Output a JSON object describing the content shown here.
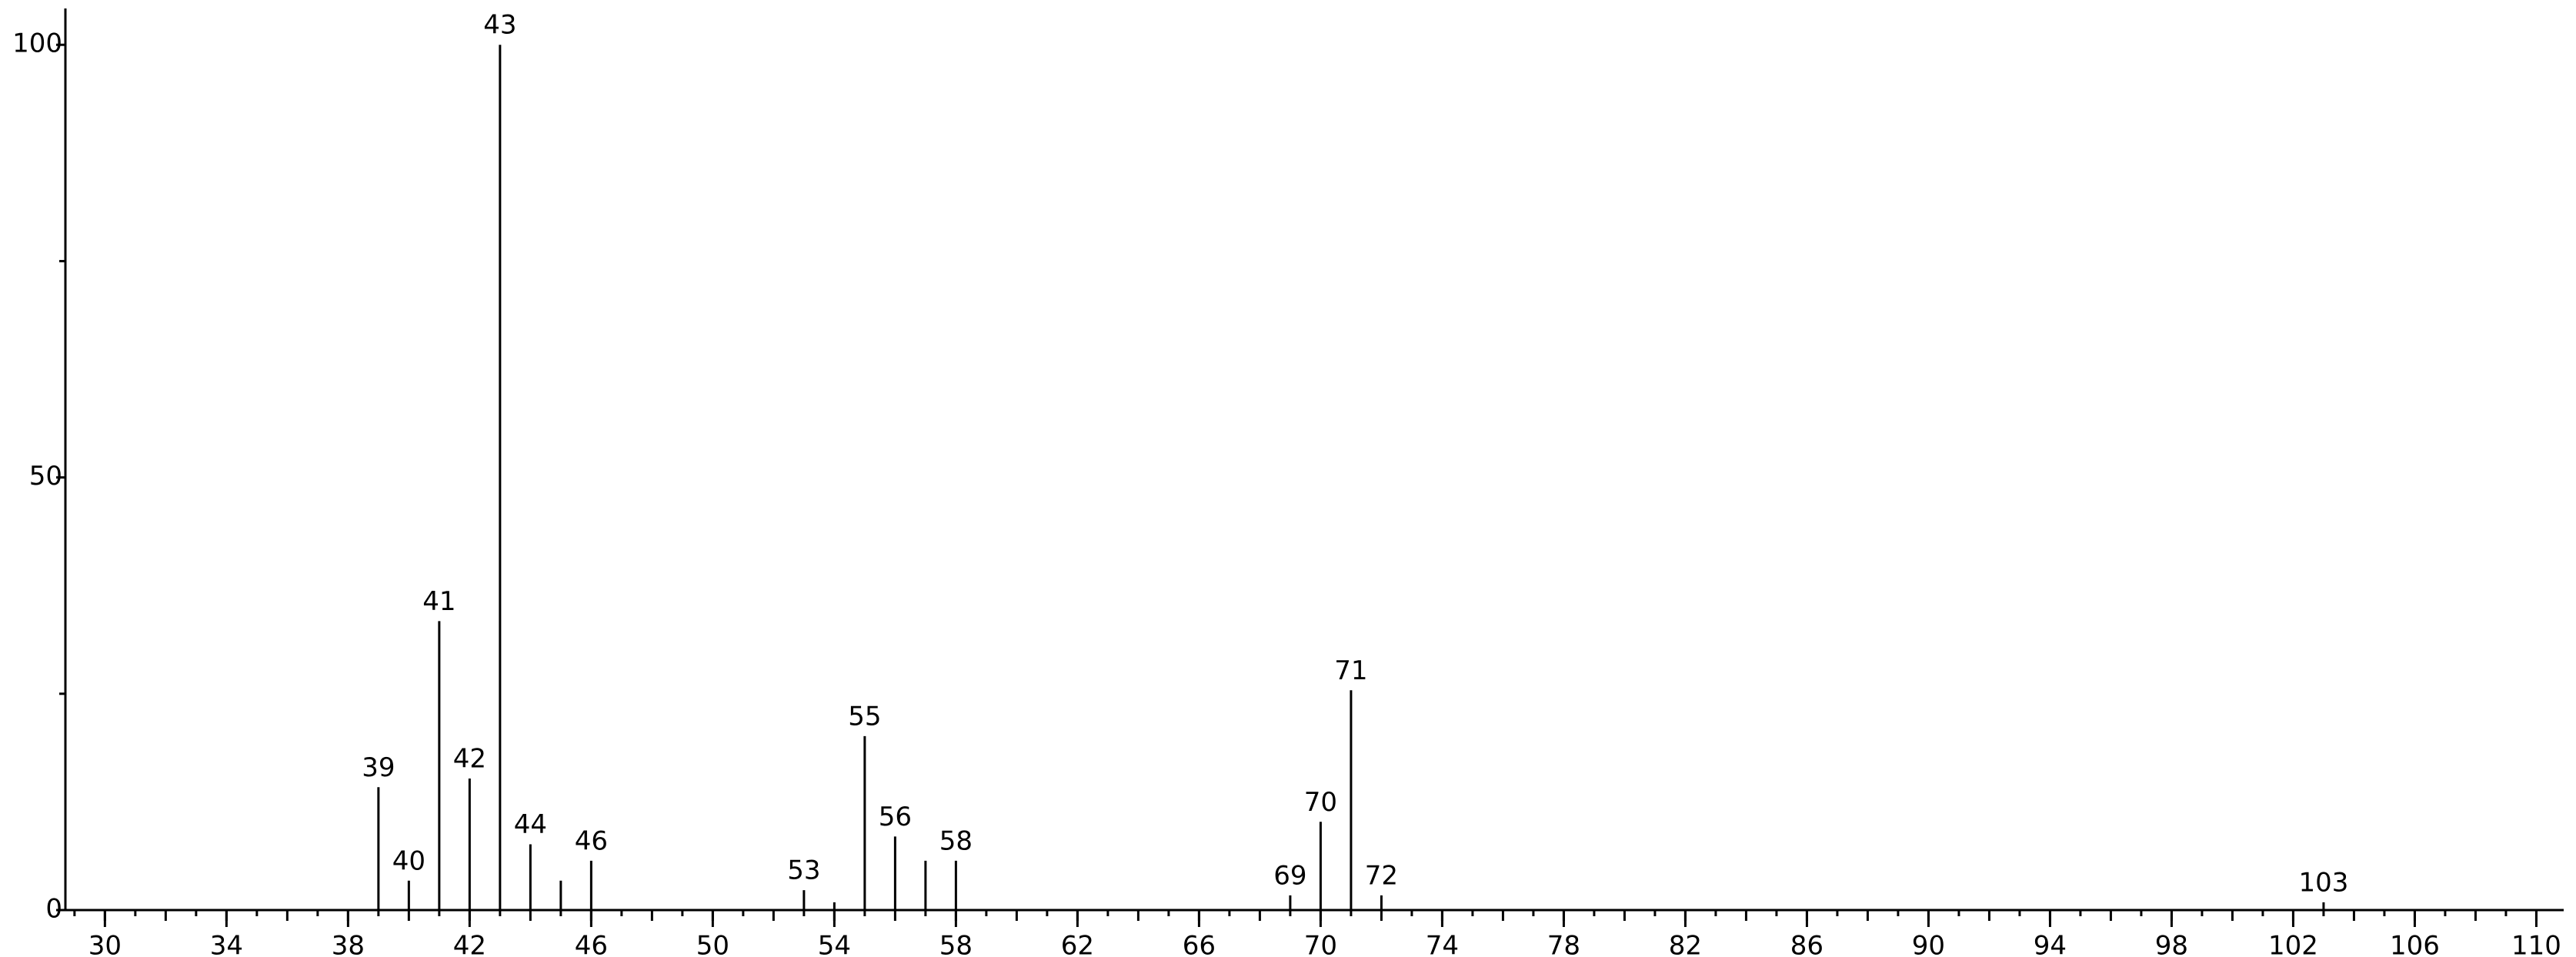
{
  "chart_data": {
    "type": "stem",
    "x": [
      39,
      40,
      41,
      42,
      43,
      44,
      45,
      46,
      53,
      54,
      55,
      56,
      57,
      58,
      69,
      70,
      71,
      72,
      103
    ],
    "values": [
      14.2,
      3.4,
      33.4,
      15.2,
      100,
      7.6,
      3.4,
      5.7,
      2.3,
      0.9,
      20.1,
      8.5,
      5.7,
      5.7,
      1.7,
      10.2,
      25.4,
      1.7,
      0.9
    ],
    "peak_labels": [
      "39",
      "40",
      "41",
      "42",
      "43",
      "44",
      null,
      "46",
      "53",
      null,
      "55",
      "56",
      null,
      "58",
      "69",
      "70",
      "71",
      "72",
      "103"
    ],
    "color": "#000000",
    "xlim": [
      28.7,
      110.9
    ],
    "ylim": [
      0,
      104.2
    ],
    "xticks": [
      30,
      34,
      38,
      42,
      46,
      50,
      54,
      58,
      62,
      66,
      70,
      74,
      78,
      82,
      86,
      90,
      94,
      98,
      102,
      106,
      110
    ],
    "yticks": [
      0,
      50,
      100
    ],
    "yminor": [
      25,
      75
    ],
    "xminor": 1
  }
}
